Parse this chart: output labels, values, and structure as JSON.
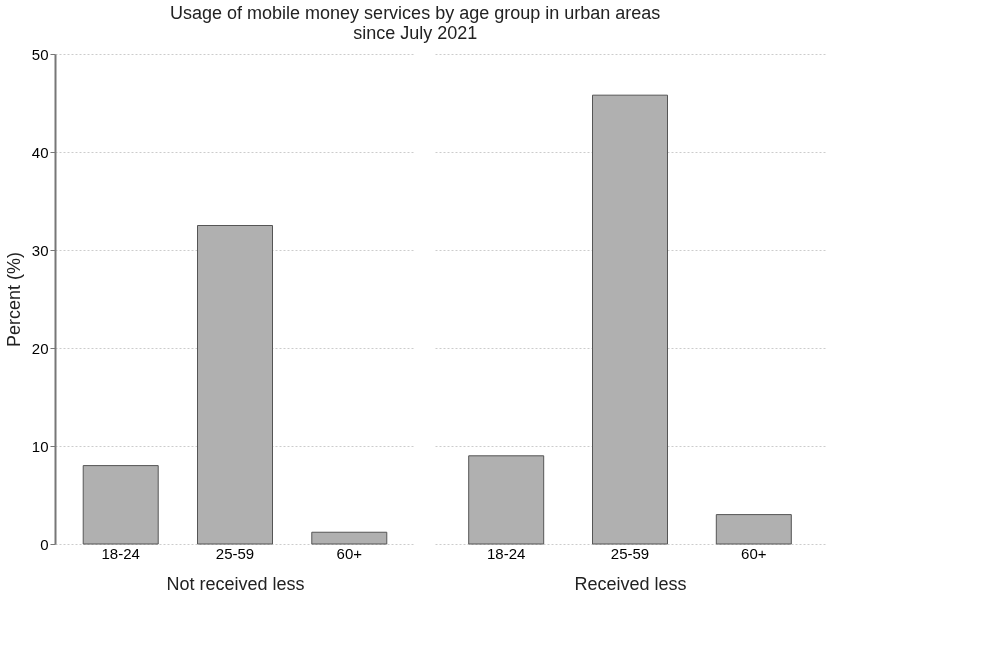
{
  "chart_data": [
    {
      "type": "bar",
      "title": "Usage of mobile money services by age group in urban areas\nsince July 2021",
      "ylabel": "Percent (%)",
      "xlabel": "Not received less",
      "categories": [
        "18-24",
        "25-59",
        "60+"
      ],
      "values": [
        8.0,
        32.5,
        1.2
      ],
      "color": "#b0b0b0",
      "ylim": [
        0,
        50
      ],
      "yticks": [
        0,
        10,
        20,
        30,
        40,
        50
      ],
      "grid": "y"
    },
    {
      "type": "bar",
      "xlabel": "Received less",
      "categories": [
        "18-24",
        "25-59",
        "60+"
      ],
      "values": [
        9.0,
        45.8,
        3.0
      ],
      "color": "#b0b0b0",
      "ylim": [
        0,
        50
      ],
      "yticks": [
        0,
        10,
        20,
        30,
        40,
        50
      ],
      "grid": "y",
      "tick_labels": "x"
    }
  ]
}
